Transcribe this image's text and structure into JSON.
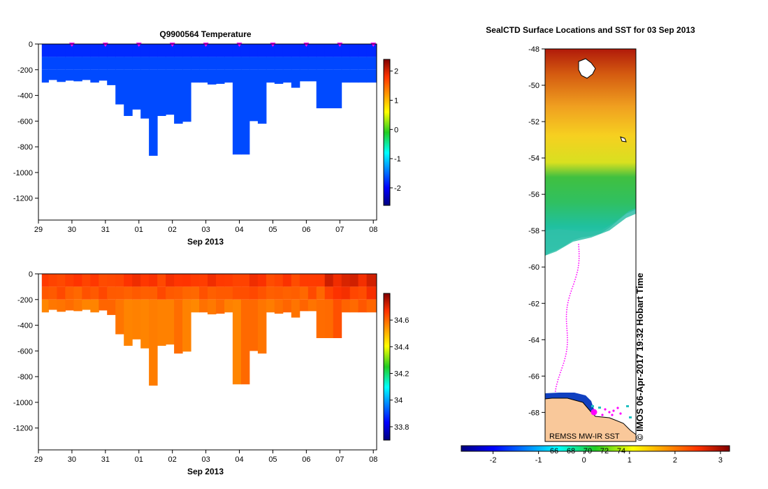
{
  "chart_data": [
    {
      "type": "heatmap",
      "title": "Q9900564  Temperature",
      "xlabel": "Sep 2013",
      "ylabel": "",
      "x_tick_labels": [
        "29",
        "30",
        "31",
        "01",
        "02",
        "03",
        "04",
        "05",
        "06",
        "07",
        "08"
      ],
      "x_range": [
        29,
        39.1
      ],
      "y_ticks": [
        0,
        -200,
        -400,
        -600,
        -800,
        -1000,
        -1200
      ],
      "ylim": [
        -1370,
        0
      ],
      "colorbar": {
        "ticks": [
          2,
          1,
          0,
          -1,
          -2
        ],
        "range": [
          -2.6,
          2.4
        ]
      },
      "profile_markers": [
        30,
        31,
        32,
        33,
        34,
        35,
        36,
        37,
        38,
        39
      ],
      "profile_day_start": [
        29.1,
        29.3,
        29.55,
        29.8,
        30.05,
        30.3,
        30.55,
        30.8,
        31.05,
        31.3,
        31.55,
        31.8,
        32.05,
        32.3,
        32.55,
        32.8,
        33.05,
        33.3,
        33.55,
        33.8,
        34.05,
        34.3,
        34.55,
        34.8,
        35.05,
        35.3,
        35.55,
        35.8,
        36.05,
        36.3,
        36.55,
        36.8,
        37.05,
        37.3,
        37.55,
        37.8,
        38.05,
        38.3,
        38.55,
        38.8
      ],
      "profile_max_depth": [
        300,
        280,
        295,
        285,
        290,
        280,
        300,
        285,
        320,
        470,
        560,
        510,
        580,
        870,
        560,
        550,
        620,
        605,
        300,
        300,
        315,
        310,
        300,
        860,
        860,
        600,
        620,
        300,
        310,
        300,
        340,
        290,
        290,
        500,
        500,
        500,
        300,
        300,
        300,
        300
      ],
      "layer_depths": [
        0,
        100,
        200,
        1300
      ],
      "temperature_range": [
        -1.8,
        -1.7
      ]
    },
    {
      "type": "heatmap",
      "title": "",
      "xlabel": "Sep 2013",
      "ylabel": "",
      "x_tick_labels": [
        "29",
        "30",
        "31",
        "01",
        "02",
        "03",
        "04",
        "05",
        "06",
        "07",
        "08"
      ],
      "x_range": [
        29,
        39.1
      ],
      "y_ticks": [
        0,
        -200,
        -400,
        -600,
        -800,
        -1000,
        -1200
      ],
      "ylim": [
        -1370,
        0
      ],
      "colorbar": {
        "ticks": [
          34.6,
          34.4,
          34.2,
          34,
          33.8
        ],
        "range": [
          33.7,
          34.8
        ]
      },
      "salinity_range": [
        34.55,
        34.7
      ]
    },
    {
      "type": "map",
      "title": "SealCTD Surface Locations and SST for 03 Sep 2013",
      "y_tick_labels": [
        "-48",
        "-50",
        "-52",
        "-54",
        "-56",
        "-58",
        "-60",
        "-62",
        "-64",
        "-66",
        "-68"
      ],
      "ylim": [
        -69.6,
        -48
      ],
      "colorbar_ticks": [
        -2,
        -1,
        0,
        1,
        2,
        3
      ],
      "colorbar_range": [
        -2.7,
        3.2
      ],
      "colorbar_overlay_labels": [
        "66",
        "68",
        "70",
        "72",
        "74"
      ],
      "stamp": "© IMOS 06-Apr-2017 19:32 Hobart Time",
      "credit": "REMSS MW-IR SST",
      "colors": {
        "land": "#f9c89a",
        "track": "#ff00ff",
        "sea_ice": "#ffffff"
      }
    }
  ]
}
